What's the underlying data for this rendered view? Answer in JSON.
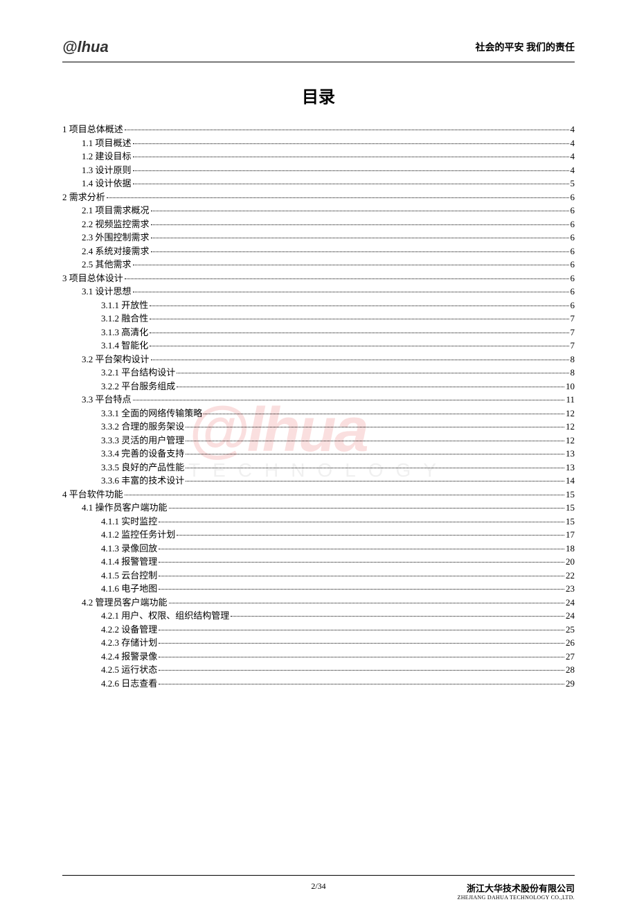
{
  "header": {
    "logo_text": "alhua",
    "tagline": "社会的平安 我们的责任"
  },
  "toc_title": "目录",
  "watermark": {
    "logo": "alhua",
    "subtitle": "TECHNOLOGY"
  },
  "entries": [
    {
      "level": 1,
      "label": "1 项目总体概述",
      "page": "4"
    },
    {
      "level": 2,
      "label": "1.1 项目概述",
      "page": "4"
    },
    {
      "level": 2,
      "label": "1.2 建设目标",
      "page": "4"
    },
    {
      "level": 2,
      "label": "1.3 设计原则",
      "page": "4"
    },
    {
      "level": 2,
      "label": "1.4 设计依据",
      "page": "5"
    },
    {
      "level": 1,
      "label": "2 需求分析",
      "page": "6"
    },
    {
      "level": 2,
      "label": "2.1 项目需求概况",
      "page": "6"
    },
    {
      "level": 2,
      "label": "2.2  视频监控需求",
      "page": "6"
    },
    {
      "level": 2,
      "label": "2.3  外围控制需求",
      "page": "6"
    },
    {
      "level": 2,
      "label": "2.4  系统对接需求",
      "page": "6"
    },
    {
      "level": 2,
      "label": "2.5  其他需求",
      "page": "6"
    },
    {
      "level": 1,
      "label": "3  项目总体设计",
      "page": "6"
    },
    {
      "level": 2,
      "label": "3.1  设计思想",
      "page": "6"
    },
    {
      "level": 3,
      "label": "3.1.1  开放性",
      "page": "6"
    },
    {
      "level": 3,
      "label": "3.1.2  融合性",
      "page": "7"
    },
    {
      "level": 3,
      "label": "3.1.3  高清化",
      "page": "7"
    },
    {
      "level": 3,
      "label": "3.1.4  智能化",
      "page": "7"
    },
    {
      "level": 2,
      "label": "3.2  平台架构设计",
      "page": "8"
    },
    {
      "level": 3,
      "label": "3.2.1  平台结构设计",
      "page": "8"
    },
    {
      "level": 3,
      "label": "3.2.2 平台服务组成",
      "page": "10"
    },
    {
      "level": 2,
      "label": "3.3 平台特点",
      "page": "11"
    },
    {
      "level": 3,
      "label": "3.3.1 全面的网络传输策略",
      "page": "12"
    },
    {
      "level": 3,
      "label": "3.3.2 合理的服务架设",
      "page": "12"
    },
    {
      "level": 3,
      "label": "3.3.3 灵活的用户管理",
      "page": "12"
    },
    {
      "level": 3,
      "label": "3.3.4  完善的设备支持",
      "page": "13"
    },
    {
      "level": 3,
      "label": "3.3.5 良好的产品性能",
      "page": "13"
    },
    {
      "level": 3,
      "label": "3.3.6 丰富的技术设计",
      "page": "14"
    },
    {
      "level": 1,
      "label": "4  平台软件功能",
      "page": "15"
    },
    {
      "level": 2,
      "label": "4.1  操作员客户端功能",
      "page": "15"
    },
    {
      "level": 3,
      "label": "4.1.1 实时监控",
      "page": "15"
    },
    {
      "level": 3,
      "label": "4.1.2  监控任务计划",
      "page": "17"
    },
    {
      "level": 3,
      "label": "4.1.3  录像回放",
      "page": "18"
    },
    {
      "level": 3,
      "label": "4.1.4  报警管理",
      "page": "20"
    },
    {
      "level": 3,
      "label": "4.1.5 云台控制",
      "page": "22"
    },
    {
      "level": 3,
      "label": "4.1.6 电子地图",
      "page": "23"
    },
    {
      "level": 2,
      "label": "4.2  管理员客户端功能",
      "page": "24"
    },
    {
      "level": 3,
      "label": "4.2.1 用户、权限、组织结构管理",
      "page": "24"
    },
    {
      "level": 3,
      "label": "4.2.2 设备管理",
      "page": "25"
    },
    {
      "level": 3,
      "label": "4.2.3 存储计划",
      "page": "26"
    },
    {
      "level": 3,
      "label": "4.2.4 报警录像",
      "page": "27"
    },
    {
      "level": 3,
      "label": "4.2.5 运行状态",
      "page": "28"
    },
    {
      "level": 3,
      "label": "4.2.6 日志查看",
      "page": "29"
    }
  ],
  "footer": {
    "page_number": "2/34",
    "company_cn": "浙江大华技术股份有限公司",
    "company_en": "ZHEJIANG DAHUA TECHNOLOGY CO.,LTD."
  }
}
